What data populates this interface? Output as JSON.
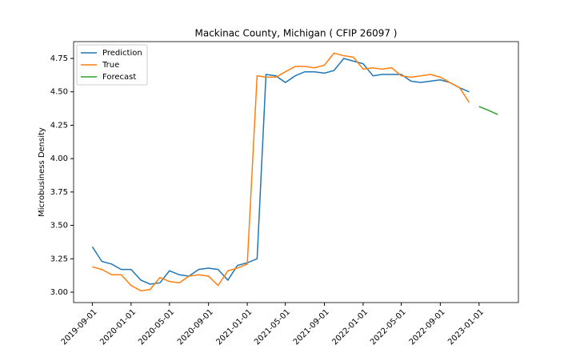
{
  "chart_data": {
    "type": "line",
    "title": "Mackinac County, Michigan ( CFIP 26097 )",
    "ylabel": "Microbusiness Density",
    "xlim": [
      "2019-07-04",
      "2023-05-05"
    ],
    "xticks": [
      "2019-09-01",
      "2020-01-01",
      "2020-05-01",
      "2020-09-01",
      "2021-01-01",
      "2021-05-01",
      "2021-09-01",
      "2022-01-01",
      "2022-05-01",
      "2022-09-01",
      "2023-01-01"
    ],
    "ylim": [
      2.922,
      4.876
    ],
    "yticks": [
      {
        "value": 3,
        "label": "3.00"
      },
      {
        "value": 3.25,
        "label": "3.25"
      },
      {
        "value": 3.5,
        "label": "3.50"
      },
      {
        "value": 3.75,
        "label": "3.75"
      },
      {
        "value": 4,
        "label": "4.00"
      },
      {
        "value": 4.25,
        "label": "4.25"
      },
      {
        "value": 4.5,
        "label": "4.50"
      },
      {
        "value": 4.75,
        "label": "4.75"
      }
    ],
    "legend": "upper left",
    "series": [
      {
        "name": "Prediction",
        "color": "#1f77b4",
        "x": [
          "2019-09-01",
          "2019-10-01",
          "2019-11-01",
          "2019-12-01",
          "2020-01-01",
          "2020-02-01",
          "2020-03-01",
          "2020-04-01",
          "2020-05-01",
          "2020-06-01",
          "2020-07-01",
          "2020-08-01",
          "2020-09-01",
          "2020-10-01",
          "2020-11-01",
          "2020-12-01",
          "2021-01-01",
          "2021-02-01",
          "2021-03-01",
          "2021-04-01",
          "2021-05-01",
          "2021-06-01",
          "2021-07-01",
          "2021-08-01",
          "2021-09-01",
          "2021-10-01",
          "2021-11-01",
          "2021-12-01",
          "2022-01-01",
          "2022-02-01",
          "2022-03-01",
          "2022-04-01",
          "2022-05-01",
          "2022-06-01",
          "2022-07-01",
          "2022-08-01",
          "2022-09-01",
          "2022-10-01",
          "2022-11-01",
          "2022-12-01"
        ],
        "values": [
          3.34,
          3.23,
          3.21,
          3.17,
          3.17,
          3.09,
          3.06,
          3.07,
          3.16,
          3.13,
          3.12,
          3.17,
          3.18,
          3.17,
          3.09,
          3.2,
          3.22,
          3.25,
          4.63,
          4.62,
          4.57,
          4.62,
          4.65,
          4.65,
          4.64,
          4.66,
          4.75,
          4.73,
          4.71,
          4.62,
          4.63,
          4.63,
          4.63,
          4.58,
          4.57,
          4.58,
          4.59,
          4.57,
          4.53,
          4.5
        ]
      },
      {
        "name": "True",
        "color": "#ff7f0e",
        "x": [
          "2019-09-01",
          "2019-10-01",
          "2019-11-01",
          "2019-12-01",
          "2020-01-01",
          "2020-02-01",
          "2020-03-01",
          "2020-04-01",
          "2020-05-01",
          "2020-06-01",
          "2020-07-01",
          "2020-08-01",
          "2020-09-01",
          "2020-10-01",
          "2020-11-01",
          "2020-12-01",
          "2021-01-01",
          "2021-02-01",
          "2021-03-01",
          "2021-04-01",
          "2021-05-01",
          "2021-06-01",
          "2021-07-01",
          "2021-08-01",
          "2021-09-01",
          "2021-10-01",
          "2021-11-01",
          "2021-12-01",
          "2022-01-01",
          "2022-02-01",
          "2022-03-01",
          "2022-04-01",
          "2022-05-01",
          "2022-06-01",
          "2022-07-01",
          "2022-08-01",
          "2022-09-01",
          "2022-10-01",
          "2022-11-01",
          "2022-12-01"
        ],
        "values": [
          3.19,
          3.17,
          3.13,
          3.13,
          3.05,
          3.01,
          3.02,
          3.11,
          3.08,
          3.07,
          3.12,
          3.13,
          3.12,
          3.05,
          3.16,
          3.18,
          3.21,
          4.62,
          4.61,
          4.61,
          4.65,
          4.69,
          4.69,
          4.68,
          4.7,
          4.79,
          4.77,
          4.76,
          4.67,
          4.68,
          4.67,
          4.68,
          4.62,
          4.61,
          4.62,
          4.63,
          4.61,
          4.57,
          4.53,
          4.42
        ]
      },
      {
        "name": "Forecast",
        "color": "#2ca02c",
        "x": [
          "2023-01-01",
          "2023-02-01",
          "2023-03-01"
        ],
        "values": [
          4.39,
          4.36,
          4.33
        ]
      }
    ]
  }
}
